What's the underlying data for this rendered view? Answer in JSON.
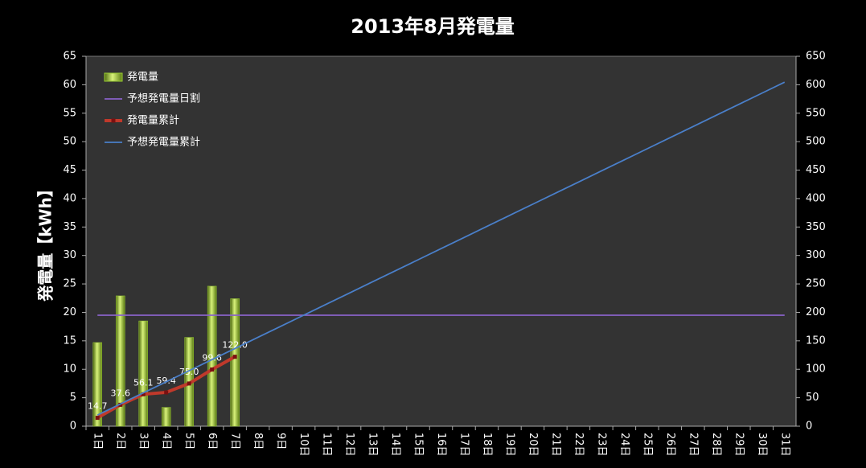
{
  "chart_data": {
    "type": "combo",
    "title": "2013年8月発電量",
    "y_label": "発電量【kWh】",
    "categories": [
      "1日",
      "2日",
      "3日",
      "4日",
      "5日",
      "6日",
      "7日",
      "8日",
      "9日",
      "10日",
      "11日",
      "12日",
      "13日",
      "14日",
      "15日",
      "16日",
      "17日",
      "18日",
      "19日",
      "20日",
      "21日",
      "22日",
      "23日",
      "24日",
      "25日",
      "26日",
      "27日",
      "28日",
      "29日",
      "30日",
      "31日"
    ],
    "ylim": [
      0,
      65
    ],
    "yticks": [
      0,
      5,
      10,
      15,
      20,
      25,
      30,
      35,
      40,
      45,
      50,
      55,
      60,
      65
    ],
    "y2lim": [
      0,
      650
    ],
    "y2ticks": [
      0,
      50,
      100,
      150,
      200,
      250,
      300,
      350,
      400,
      450,
      500,
      550,
      600,
      650
    ],
    "legend": "top-left",
    "series": [
      {
        "name": "発電量",
        "type": "bar",
        "color": "#9acd32",
        "values": [
          14.7,
          22.9,
          18.5,
          3.3,
          15.6,
          24.6,
          22.4,
          null,
          null,
          null,
          null,
          null,
          null,
          null,
          null,
          null,
          null,
          null,
          null,
          null,
          null,
          null,
          null,
          null,
          null,
          null,
          null,
          null,
          null,
          null,
          null
        ]
      },
      {
        "name": "予想発電量日割",
        "type": "line",
        "color": "#8a63c9",
        "values": [
          19.5,
          19.5,
          19.5,
          19.5,
          19.5,
          19.5,
          19.5,
          19.5,
          19.5,
          19.5,
          19.5,
          19.5,
          19.5,
          19.5,
          19.5,
          19.5,
          19.5,
          19.5,
          19.5,
          19.5,
          19.5,
          19.5,
          19.5,
          19.5,
          19.5,
          19.5,
          19.5,
          19.5,
          19.5,
          19.5,
          19.5
        ]
      },
      {
        "name": "発電量累計",
        "type": "line",
        "axis": "y2",
        "color": "#c0392b",
        "markers": true,
        "values": [
          14.7,
          37.6,
          56.1,
          59.4,
          75,
          99.6,
          122,
          null,
          null,
          null,
          null,
          null,
          null,
          null,
          null,
          null,
          null,
          null,
          null,
          null,
          null,
          null,
          null,
          null,
          null,
          null,
          null,
          null,
          null,
          null,
          null
        ],
        "value_labels": [
          "14.7",
          "37.6",
          "56.1",
          "59.4",
          "75.0",
          "99.6",
          "122.0",
          null,
          null,
          null,
          null,
          null,
          null,
          null,
          null,
          null,
          null,
          null,
          null,
          null,
          null,
          null,
          null,
          null,
          null,
          null,
          null,
          null,
          null,
          null,
          null
        ]
      },
      {
        "name": "予想発電量累計",
        "type": "line",
        "axis": "y2",
        "color": "#4a7fc9",
        "values": [
          19.5,
          39,
          58.5,
          78,
          97.5,
          117,
          136.5,
          156,
          175.5,
          195,
          214.5,
          234,
          253.5,
          273,
          292.5,
          312,
          331.5,
          351,
          370.5,
          390,
          409.5,
          429,
          448.5,
          468,
          487.5,
          507,
          526.5,
          546,
          565.5,
          585,
          604.5
        ]
      }
    ]
  }
}
